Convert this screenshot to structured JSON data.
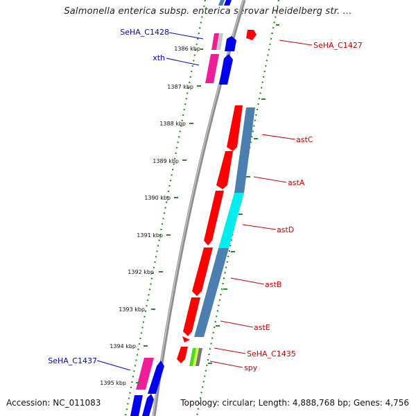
{
  "title": "Salmonella enterica subsp. enterica serovar Heidelberg str. ...",
  "footer": {
    "accession": "Accession: NC_011083",
    "topology": "Topology: circular; Length: 4,888,768 bp; Genes: 4,756"
  },
  "colors": {
    "cds_red": "#ff0000",
    "cds_magenta": "#ee1e99",
    "cds_blue": "#0000ee",
    "operon_steelblue": "#4a7fb0",
    "operon_cyan": "#00eeee",
    "tick_green": "#228b22",
    "backbone_gray": "#999999",
    "left_label_blue": "#0000cc",
    "right_label_red": "#cc0000"
  },
  "ticks": [
    {
      "label": "1386 kbp",
      "kbp": 1386
    },
    {
      "label": "1387 kbp",
      "kbp": 1387
    },
    {
      "label": "1388 kbp",
      "kbp": 1388
    },
    {
      "label": "1389 kbp",
      "kbp": 1389
    },
    {
      "label": "1390 kbp",
      "kbp": 1390
    },
    {
      "label": "1391 kbp",
      "kbp": 1391
    },
    {
      "label": "1392 kbp",
      "kbp": 1392
    },
    {
      "label": "1393 kbp",
      "kbp": 1393
    },
    {
      "label": "1394 kbp",
      "kbp": 1394
    },
    {
      "label": "1395 kbp",
      "kbp": 1395
    }
  ],
  "left_labels": [
    {
      "text": "SeHA_C1428"
    },
    {
      "text": "xth"
    },
    {
      "text": "SeHA_C1437"
    }
  ],
  "right_labels": [
    {
      "text": "SeHA_C1427"
    },
    {
      "text": "astC"
    },
    {
      "text": "astA"
    },
    {
      "text": "astD"
    },
    {
      "text": "astB"
    },
    {
      "text": "astE"
    },
    {
      "text": "SeHA_C1435"
    },
    {
      "text": "spy"
    }
  ]
}
